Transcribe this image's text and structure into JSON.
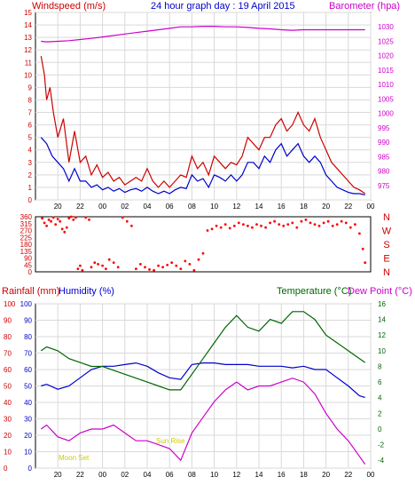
{
  "page": {
    "title": "24 hour graph day : 19 April 2015",
    "bg": "#ffffff",
    "grid_color": "#d9d9d9",
    "frame_color": "#000000"
  },
  "chart_data": [
    {
      "id": "wind-baro",
      "type": "line",
      "title": "24 hour graph day : 19 April 2015",
      "x_ticks": [
        "20",
        "22",
        "00",
        "02",
        "04",
        "06",
        "08",
        "10",
        "12",
        "14",
        "16",
        "18",
        "20",
        "22",
        "00"
      ],
      "left_axis": {
        "label": "Windspeed (m/s)",
        "color": "#cc0000",
        "ylim": [
          0,
          15
        ],
        "ticks": [
          0,
          1,
          2,
          3,
          4,
          5,
          6,
          7,
          8,
          9,
          10,
          11,
          12,
          13,
          14,
          15
        ]
      },
      "right_axis": {
        "label": "Barometer (hpa)",
        "color": "#cc00cc",
        "ylim": [
          970,
          1035
        ],
        "ticks": [
          975,
          980,
          985,
          990,
          995,
          1000,
          1005,
          1010,
          1015,
          1020,
          1025,
          1030
        ]
      },
      "grid": true,
      "series": [
        {
          "label": "Windspeed",
          "axis": "left",
          "color": "#cc0000",
          "x": [
            18.5,
            18.8,
            19,
            19.3,
            19.6,
            20,
            20.5,
            21,
            21.5,
            22,
            22.5,
            23,
            23.5,
            24,
            24.5,
            25,
            25.5,
            26,
            26.5,
            27,
            27.5,
            28,
            28.5,
            29,
            29.5,
            30,
            30.5,
            31,
            31.5,
            32,
            32.5,
            33,
            33.5,
            34,
            34.5,
            35,
            35.5,
            36,
            36.5,
            37,
            37.5,
            38,
            38.5,
            39,
            39.5,
            40,
            40.5,
            41,
            41.5,
            42,
            42.5,
            43,
            43.5,
            44,
            44.5,
            45,
            45.5,
            46,
            46.5,
            47,
            47.5
          ],
          "y": [
            11.5,
            10,
            8,
            9,
            7,
            5,
            6.5,
            3,
            5.5,
            3,
            3.5,
            2,
            2.8,
            1.8,
            2.2,
            1.5,
            1.8,
            1.2,
            1.5,
            1.8,
            1.5,
            2.5,
            1.5,
            1,
            1.5,
            1,
            1.5,
            2,
            1.8,
            3.5,
            2.5,
            3,
            2,
            3.5,
            3,
            2.5,
            3,
            2.8,
            3.5,
            5,
            4.5,
            4,
            5,
            5,
            6,
            6.5,
            5.5,
            6,
            7,
            6,
            5.5,
            6.5,
            5,
            4,
            3,
            2.5,
            2,
            1.5,
            1,
            0.8,
            0.5
          ]
        },
        {
          "label": "Windspeed (avg)",
          "axis": "left",
          "color": "#0000cc",
          "x": [
            18.5,
            19,
            19.5,
            20,
            20.5,
            21,
            21.5,
            22,
            22.5,
            23,
            23.5,
            24,
            24.5,
            25,
            25.5,
            26,
            26.5,
            27,
            27.5,
            28,
            28.5,
            29,
            29.5,
            30,
            30.5,
            31,
            31.5,
            32,
            32.5,
            33,
            33.5,
            34,
            34.5,
            35,
            35.5,
            36,
            36.5,
            37,
            37.5,
            38,
            38.5,
            39,
            39.5,
            40,
            40.5,
            41,
            41.5,
            42,
            42.5,
            43,
            43.5,
            44,
            44.5,
            45,
            45.5,
            46,
            46.5,
            47,
            47.5
          ],
          "y": [
            5,
            4.5,
            3.5,
            3,
            2.5,
            1.5,
            2.5,
            1.5,
            1.5,
            1,
            1.2,
            0.8,
            1,
            0.7,
            0.9,
            0.6,
            0.8,
            0.9,
            0.7,
            1,
            0.7,
            0.5,
            0.7,
            0.5,
            0.8,
            1,
            0.9,
            2,
            1.5,
            1.7,
            1,
            2,
            1.8,
            1.5,
            2,
            1.5,
            2,
            3,
            3,
            2.5,
            3.5,
            3,
            4,
            4.5,
            3.5,
            4,
            4.5,
            3.5,
            3,
            3.5,
            3,
            2,
            1.5,
            1,
            0.8,
            0.6,
            0.5,
            0.5,
            0.4
          ]
        },
        {
          "label": "Barometer",
          "axis": "right",
          "color": "#cc00cc",
          "x": [
            18.5,
            19,
            20,
            21,
            22,
            23,
            24,
            25,
            26,
            27,
            28,
            29,
            30,
            31,
            32,
            33,
            34,
            35,
            36,
            37,
            38,
            39,
            40,
            41,
            42,
            43,
            44,
            45,
            46,
            47,
            47.5
          ],
          "y": [
            1025,
            1024.8,
            1025,
            1025.2,
            1025.6,
            1026,
            1026.5,
            1027,
            1027.5,
            1028,
            1028.5,
            1029,
            1029.5,
            1030,
            1030,
            1030.2,
            1030.2,
            1030,
            1030,
            1029.8,
            1029.5,
            1029.3,
            1029,
            1028.8,
            1029,
            1029,
            1029,
            1029,
            1029,
            1029,
            1029
          ]
        }
      ]
    },
    {
      "id": "wind-direction",
      "type": "scatter",
      "left_axis": {
        "ticks": [
          0,
          45,
          90,
          135,
          180,
          225,
          270,
          315,
          360
        ],
        "ylim": [
          0,
          360
        ],
        "color": "#cc0000"
      },
      "right_labels": [
        "N",
        "W",
        "S",
        "E",
        "N"
      ],
      "right_color": "#cc0000",
      "series": [
        {
          "label": "Wind direction",
          "color": "#ff0000",
          "x": [
            18.6,
            18.8,
            19,
            19.2,
            19.4,
            19.6,
            19.8,
            20,
            20.2,
            20.4,
            20.6,
            20.8,
            21,
            21.2,
            21.4,
            21.6,
            21.8,
            22,
            22.2,
            22.5,
            22.8,
            23,
            23.3,
            23.6,
            24,
            24.3,
            24.6,
            25,
            25.4,
            25.8,
            26.2,
            26.6,
            27,
            27.4,
            27.8,
            28.2,
            28.6,
            29,
            29.4,
            29.8,
            30.2,
            30.6,
            31,
            31.4,
            31.8,
            32.2,
            32.6,
            33,
            33.4,
            33.8,
            34.2,
            34.6,
            35,
            35.4,
            35.8,
            36.2,
            36.6,
            37,
            37.4,
            37.8,
            38.2,
            38.6,
            39,
            39.4,
            39.8,
            40.2,
            40.6,
            41,
            41.4,
            41.8,
            42.2,
            42.6,
            43,
            43.4,
            43.8,
            44.2,
            44.6,
            45,
            45.4,
            45.8,
            46.2,
            46.6,
            47,
            47.3,
            47.5
          ],
          "y": [
            350,
            320,
            300,
            340,
            330,
            355,
            310,
            345,
            330,
            280,
            260,
            290,
            350,
            360,
            340,
            355,
            20,
            40,
            10,
            355,
            340,
            30,
            60,
            50,
            40,
            20,
            80,
            60,
            30,
            355,
            330,
            300,
            20,
            50,
            30,
            15,
            10,
            40,
            30,
            45,
            60,
            40,
            20,
            70,
            50,
            10,
            80,
            120,
            270,
            280,
            300,
            290,
            310,
            285,
            300,
            320,
            310,
            300,
            290,
            310,
            300,
            290,
            320,
            330,
            310,
            300,
            310,
            320,
            290,
            330,
            340,
            320,
            310,
            300,
            320,
            330,
            300,
            310,
            330,
            320,
            290,
            310,
            250,
            150,
            60
          ]
        }
      ]
    },
    {
      "id": "temp-hum-rain",
      "type": "line",
      "left_axis_rain": {
        "label": "Rainfall (mm)",
        "color": "#cc0000",
        "ticks": [
          0,
          10,
          20,
          30,
          40,
          50,
          60,
          70,
          80,
          90,
          100
        ]
      },
      "left_axis_humidity": {
        "label": "Humidity (%)",
        "color": "#0000cc",
        "ticks": [
          0,
          10,
          20,
          30,
          40,
          50,
          60,
          70,
          80,
          90,
          100
        ],
        "ylim": [
          0,
          100
        ]
      },
      "right_axis": {
        "label_temp": "Temperature (°C)",
        "label_dew": "Dew Point (°C)",
        "temp_color": "#006600",
        "dew_color": "#cc00cc",
        "ticks": [
          -4,
          -2,
          0,
          2,
          4,
          6,
          8,
          10,
          12,
          14,
          16
        ],
        "ylim": [
          -5,
          16
        ]
      },
      "annotations": [
        {
          "text": "Moon Set",
          "color": "#cccc00"
        },
        {
          "text": "Sun Rise",
          "color": "#cccc00"
        }
      ],
      "grid": true,
      "series": [
        {
          "label": "Humidity",
          "axis": "humidity",
          "color": "#0000cc",
          "x": [
            18.5,
            19,
            20,
            21,
            22,
            23,
            24,
            25,
            26,
            27,
            28,
            29,
            30,
            31,
            32,
            33,
            34,
            35,
            36,
            37,
            38,
            39,
            40,
            41,
            42,
            43,
            44,
            45,
            46,
            47,
            47.5
          ],
          "y": [
            50,
            51,
            48,
            50,
            55,
            60,
            62,
            62,
            63,
            64,
            62,
            58,
            55,
            54,
            63,
            64,
            64,
            63,
            63,
            63,
            62,
            62,
            62,
            61,
            62,
            60,
            60,
            55,
            50,
            44,
            43
          ]
        },
        {
          "label": "Temperature",
          "axis": "right",
          "color": "#006600",
          "x": [
            18.5,
            19,
            20,
            21,
            22,
            23,
            24,
            25,
            26,
            27,
            28,
            29,
            30,
            31,
            32,
            33,
            34,
            35,
            36,
            37,
            38,
            39,
            40,
            41,
            42,
            43,
            44,
            45,
            46,
            47,
            47.5
          ],
          "y": [
            10,
            10.5,
            10,
            9,
            8.5,
            8,
            8,
            7.5,
            7,
            6.5,
            6,
            5.5,
            5,
            5,
            7,
            9,
            11,
            13,
            14.5,
            13,
            12.5,
            14,
            13.5,
            15,
            15,
            14,
            12,
            11,
            10,
            9,
            8.5
          ]
        },
        {
          "label": "Dew Point",
          "axis": "right",
          "color": "#cc00cc",
          "x": [
            18.5,
            19,
            20,
            21,
            22,
            23,
            24,
            25,
            26,
            27,
            28,
            29,
            30,
            31,
            32,
            33,
            34,
            35,
            36,
            37,
            38,
            39,
            40,
            41,
            42,
            43,
            44,
            45,
            46,
            47,
            47.5
          ],
          "y": [
            0,
            0.5,
            -1,
            -1.5,
            -0.5,
            0,
            0,
            0.5,
            -0.5,
            -1.5,
            -1.5,
            -2,
            -2.5,
            -4,
            -0.5,
            1.5,
            3.5,
            5,
            6,
            5,
            5.5,
            5.5,
            6,
            6.5,
            6,
            4.5,
            2,
            0,
            -1.5,
            -3.5,
            -4.5
          ]
        }
      ]
    }
  ]
}
